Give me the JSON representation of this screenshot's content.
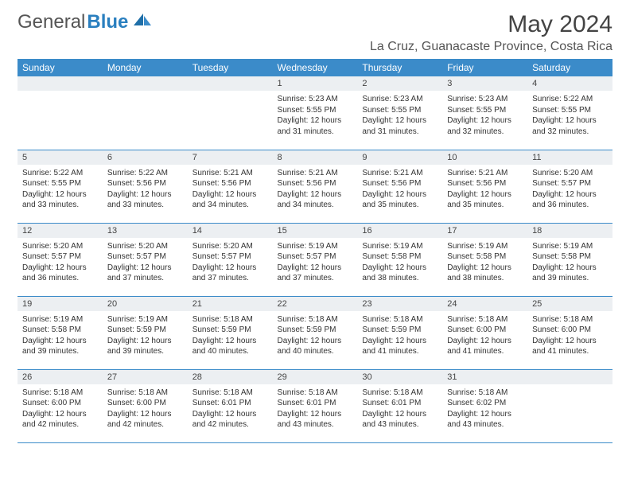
{
  "header": {
    "logo_general": "General",
    "logo_blue": "Blue",
    "month_title": "May 2024",
    "location": "La Cruz, Guanacaste Province, Costa Rica"
  },
  "colors": {
    "header_bg": "#3b8bc9",
    "header_fg": "#ffffff",
    "daynum_bg": "#eceff2",
    "border": "#3b8bc9",
    "logo_blue": "#2a7fbf"
  },
  "weekdays": [
    "Sunday",
    "Monday",
    "Tuesday",
    "Wednesday",
    "Thursday",
    "Friday",
    "Saturday"
  ],
  "weeks": [
    [
      null,
      null,
      null,
      {
        "num": "1",
        "sunrise": "Sunrise: 5:23 AM",
        "sunset": "Sunset: 5:55 PM",
        "daylight1": "Daylight: 12 hours",
        "daylight2": "and 31 minutes."
      },
      {
        "num": "2",
        "sunrise": "Sunrise: 5:23 AM",
        "sunset": "Sunset: 5:55 PM",
        "daylight1": "Daylight: 12 hours",
        "daylight2": "and 31 minutes."
      },
      {
        "num": "3",
        "sunrise": "Sunrise: 5:23 AM",
        "sunset": "Sunset: 5:55 PM",
        "daylight1": "Daylight: 12 hours",
        "daylight2": "and 32 minutes."
      },
      {
        "num": "4",
        "sunrise": "Sunrise: 5:22 AM",
        "sunset": "Sunset: 5:55 PM",
        "daylight1": "Daylight: 12 hours",
        "daylight2": "and 32 minutes."
      }
    ],
    [
      {
        "num": "5",
        "sunrise": "Sunrise: 5:22 AM",
        "sunset": "Sunset: 5:55 PM",
        "daylight1": "Daylight: 12 hours",
        "daylight2": "and 33 minutes."
      },
      {
        "num": "6",
        "sunrise": "Sunrise: 5:22 AM",
        "sunset": "Sunset: 5:56 PM",
        "daylight1": "Daylight: 12 hours",
        "daylight2": "and 33 minutes."
      },
      {
        "num": "7",
        "sunrise": "Sunrise: 5:21 AM",
        "sunset": "Sunset: 5:56 PM",
        "daylight1": "Daylight: 12 hours",
        "daylight2": "and 34 minutes."
      },
      {
        "num": "8",
        "sunrise": "Sunrise: 5:21 AM",
        "sunset": "Sunset: 5:56 PM",
        "daylight1": "Daylight: 12 hours",
        "daylight2": "and 34 minutes."
      },
      {
        "num": "9",
        "sunrise": "Sunrise: 5:21 AM",
        "sunset": "Sunset: 5:56 PM",
        "daylight1": "Daylight: 12 hours",
        "daylight2": "and 35 minutes."
      },
      {
        "num": "10",
        "sunrise": "Sunrise: 5:21 AM",
        "sunset": "Sunset: 5:56 PM",
        "daylight1": "Daylight: 12 hours",
        "daylight2": "and 35 minutes."
      },
      {
        "num": "11",
        "sunrise": "Sunrise: 5:20 AM",
        "sunset": "Sunset: 5:57 PM",
        "daylight1": "Daylight: 12 hours",
        "daylight2": "and 36 minutes."
      }
    ],
    [
      {
        "num": "12",
        "sunrise": "Sunrise: 5:20 AM",
        "sunset": "Sunset: 5:57 PM",
        "daylight1": "Daylight: 12 hours",
        "daylight2": "and 36 minutes."
      },
      {
        "num": "13",
        "sunrise": "Sunrise: 5:20 AM",
        "sunset": "Sunset: 5:57 PM",
        "daylight1": "Daylight: 12 hours",
        "daylight2": "and 37 minutes."
      },
      {
        "num": "14",
        "sunrise": "Sunrise: 5:20 AM",
        "sunset": "Sunset: 5:57 PM",
        "daylight1": "Daylight: 12 hours",
        "daylight2": "and 37 minutes."
      },
      {
        "num": "15",
        "sunrise": "Sunrise: 5:19 AM",
        "sunset": "Sunset: 5:57 PM",
        "daylight1": "Daylight: 12 hours",
        "daylight2": "and 37 minutes."
      },
      {
        "num": "16",
        "sunrise": "Sunrise: 5:19 AM",
        "sunset": "Sunset: 5:58 PM",
        "daylight1": "Daylight: 12 hours",
        "daylight2": "and 38 minutes."
      },
      {
        "num": "17",
        "sunrise": "Sunrise: 5:19 AM",
        "sunset": "Sunset: 5:58 PM",
        "daylight1": "Daylight: 12 hours",
        "daylight2": "and 38 minutes."
      },
      {
        "num": "18",
        "sunrise": "Sunrise: 5:19 AM",
        "sunset": "Sunset: 5:58 PM",
        "daylight1": "Daylight: 12 hours",
        "daylight2": "and 39 minutes."
      }
    ],
    [
      {
        "num": "19",
        "sunrise": "Sunrise: 5:19 AM",
        "sunset": "Sunset: 5:58 PM",
        "daylight1": "Daylight: 12 hours",
        "daylight2": "and 39 minutes."
      },
      {
        "num": "20",
        "sunrise": "Sunrise: 5:19 AM",
        "sunset": "Sunset: 5:59 PM",
        "daylight1": "Daylight: 12 hours",
        "daylight2": "and 39 minutes."
      },
      {
        "num": "21",
        "sunrise": "Sunrise: 5:18 AM",
        "sunset": "Sunset: 5:59 PM",
        "daylight1": "Daylight: 12 hours",
        "daylight2": "and 40 minutes."
      },
      {
        "num": "22",
        "sunrise": "Sunrise: 5:18 AM",
        "sunset": "Sunset: 5:59 PM",
        "daylight1": "Daylight: 12 hours",
        "daylight2": "and 40 minutes."
      },
      {
        "num": "23",
        "sunrise": "Sunrise: 5:18 AM",
        "sunset": "Sunset: 5:59 PM",
        "daylight1": "Daylight: 12 hours",
        "daylight2": "and 41 minutes."
      },
      {
        "num": "24",
        "sunrise": "Sunrise: 5:18 AM",
        "sunset": "Sunset: 6:00 PM",
        "daylight1": "Daylight: 12 hours",
        "daylight2": "and 41 minutes."
      },
      {
        "num": "25",
        "sunrise": "Sunrise: 5:18 AM",
        "sunset": "Sunset: 6:00 PM",
        "daylight1": "Daylight: 12 hours",
        "daylight2": "and 41 minutes."
      }
    ],
    [
      {
        "num": "26",
        "sunrise": "Sunrise: 5:18 AM",
        "sunset": "Sunset: 6:00 PM",
        "daylight1": "Daylight: 12 hours",
        "daylight2": "and 42 minutes."
      },
      {
        "num": "27",
        "sunrise": "Sunrise: 5:18 AM",
        "sunset": "Sunset: 6:00 PM",
        "daylight1": "Daylight: 12 hours",
        "daylight2": "and 42 minutes."
      },
      {
        "num": "28",
        "sunrise": "Sunrise: 5:18 AM",
        "sunset": "Sunset: 6:01 PM",
        "daylight1": "Daylight: 12 hours",
        "daylight2": "and 42 minutes."
      },
      {
        "num": "29",
        "sunrise": "Sunrise: 5:18 AM",
        "sunset": "Sunset: 6:01 PM",
        "daylight1": "Daylight: 12 hours",
        "daylight2": "and 43 minutes."
      },
      {
        "num": "30",
        "sunrise": "Sunrise: 5:18 AM",
        "sunset": "Sunset: 6:01 PM",
        "daylight1": "Daylight: 12 hours",
        "daylight2": "and 43 minutes."
      },
      {
        "num": "31",
        "sunrise": "Sunrise: 5:18 AM",
        "sunset": "Sunset: 6:02 PM",
        "daylight1": "Daylight: 12 hours",
        "daylight2": "and 43 minutes."
      },
      null
    ]
  ]
}
